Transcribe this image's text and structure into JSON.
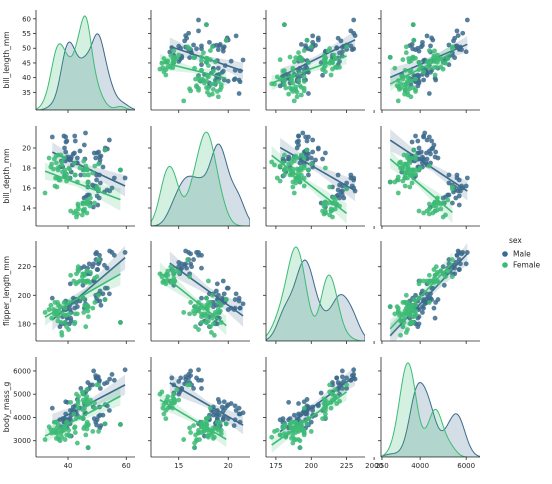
{
  "chart_data": {
    "type": "scatter",
    "kind": "pairplot",
    "variables": [
      "bill_length_mm",
      "bill_depth_mm",
      "flipper_length_mm",
      "body_mass_g"
    ],
    "ranges": {
      "bill_length_mm": [
        29,
        63
      ],
      "bill_depth_mm": [
        12.2,
        22.2
      ],
      "flipper_length_mm": [
        168,
        238
      ],
      "body_mass_g": [
        2300,
        6600
      ]
    },
    "y_ticks": {
      "bill_length_mm": [
        35,
        40,
        45,
        50,
        55,
        60
      ],
      "bill_depth_mm": [
        14,
        16,
        18,
        20
      ],
      "flipper_length_mm": [
        180,
        200,
        220
      ],
      "body_mass_g": [
        3000,
        4000,
        5000,
        6000
      ]
    },
    "x_ticks": {
      "bill_length_mm": [
        40,
        60
      ],
      "bill_depth_mm": [
        15,
        20
      ],
      "flipper_length_mm": [
        175,
        200,
        225,
        250
      ],
      "body_mass_g": [
        2000,
        4000,
        6000
      ]
    },
    "diag_kind": "kde",
    "offdiag_kind": "reg",
    "hue": "sex",
    "legend": {
      "title": "sex",
      "placement": "right",
      "entries": [
        "Male",
        "Female"
      ]
    },
    "grid": false,
    "series": [
      {
        "name": "Male",
        "color": "#3b6a8c",
        "points": [
          [
            39.1,
            18.7,
            181,
            3750
          ],
          [
            39.3,
            20.6,
            190,
            3650
          ],
          [
            39.2,
            19.6,
            195,
            4675
          ],
          [
            38.6,
            21.2,
            191,
            3800
          ],
          [
            34.6,
            21.1,
            198,
            4400
          ],
          [
            42.5,
            20.7,
            197,
            4500
          ],
          [
            46.0,
            21.5,
            194,
            4200
          ],
          [
            37.7,
            18.7,
            180,
            3600
          ],
          [
            38.2,
            18.1,
            185,
            3950
          ],
          [
            38.8,
            17.2,
            180,
            3800
          ],
          [
            40.6,
            18.8,
            193,
            3800
          ],
          [
            40.5,
            18.9,
            180,
            3950
          ],
          [
            37.2,
            18.1,
            178,
            3900
          ],
          [
            40.9,
            18.9,
            184,
            3900
          ],
          [
            39.2,
            21.1,
            196,
            4150
          ],
          [
            38.8,
            20.0,
            190,
            3950
          ],
          [
            41.1,
            19.1,
            188,
            4100
          ],
          [
            41.8,
            19.4,
            198,
            4450
          ],
          [
            39.8,
            19.1,
            184,
            4650
          ],
          [
            44.1,
            19.7,
            196,
            4400
          ],
          [
            42.3,
            21.2,
            191,
            4150
          ],
          [
            39.6,
            20.7,
            191,
            3900
          ],
          [
            40.7,
            17.0,
            190,
            3725
          ],
          [
            41.5,
            18.3,
            195,
            4300
          ],
          [
            43.2,
            19.0,
            197,
            4775
          ],
          [
            45.6,
            20.3,
            191,
            4600
          ],
          [
            42.2,
            19.5,
            197,
            4275
          ],
          [
            40.8,
            18.9,
            208,
            4300
          ],
          [
            45.8,
            18.9,
            197,
            4150
          ],
          [
            42.8,
            18.5,
            195,
            4250
          ],
          [
            50.0,
            19.5,
            196,
            3900
          ],
          [
            51.3,
            19.2,
            193,
            3650
          ],
          [
            52.7,
            19.8,
            197,
            3725
          ],
          [
            50.5,
            19.6,
            201,
            4050
          ],
          [
            49.0,
            19.5,
            210,
            3950
          ],
          [
            50.8,
            18.5,
            201,
            4450
          ],
          [
            52.0,
            18.1,
            201,
            4100
          ],
          [
            53.5,
            19.9,
            205,
            4500
          ],
          [
            49.5,
            19.0,
            200,
            3800
          ],
          [
            50.9,
            19.1,
            196,
            3550
          ],
          [
            52.8,
            20.0,
            205,
            4550
          ],
          [
            54.2,
            20.8,
            201,
            4300
          ],
          [
            51.0,
            18.8,
            203,
            4100
          ],
          [
            49.8,
            17.3,
            198,
            3675
          ],
          [
            48.7,
            14.1,
            210,
            4450
          ],
          [
            50.0,
            15.2,
            218,
            5700
          ],
          [
            47.6,
            14.5,
            215,
            5400
          ],
          [
            46.7,
            15.3,
            219,
            5200
          ],
          [
            49.6,
            16.0,
            225,
            5700
          ],
          [
            46.1,
            15.1,
            215,
            5100
          ],
          [
            48.4,
            16.3,
            220,
            5400
          ],
          [
            50.2,
            14.3,
            218,
            5700
          ],
          [
            54.3,
            15.7,
            231,
            5650
          ],
          [
            49.8,
            16.8,
            230,
            5700
          ],
          [
            49.5,
            16.2,
            229,
            5800
          ],
          [
            50.7,
            15.0,
            223,
            5550
          ],
          [
            52.5,
            15.6,
            221,
            5450
          ],
          [
            50.8,
            17.3,
            228,
            5600
          ],
          [
            55.9,
            17.0,
            228,
            5600
          ],
          [
            59.6,
            17.0,
            230,
            6050
          ],
          [
            51.1,
            16.5,
            225,
            5250
          ],
          [
            55.1,
            16.0,
            230,
            5850
          ],
          [
            48.8,
            16.2,
            222,
            6000
          ],
          [
            50.4,
            15.7,
            222,
            5750
          ],
          [
            46.9,
            16.6,
            192,
            2700
          ],
          [
            45.2,
            17.8,
            198,
            3950
          ],
          [
            43.2,
            18.5,
            192,
            4100
          ],
          [
            45.5,
            15.0,
            220,
            5000
          ],
          [
            44.4,
            17.3,
            219,
            5250
          ],
          [
            46.8,
            16.1,
            215,
            5500
          ],
          [
            47.3,
            15.3,
            222,
            5250
          ],
          [
            58.0,
            17.8,
            181,
            3700
          ],
          [
            41.1,
            17.6,
            182,
            3200
          ],
          [
            39.7,
            18.9,
            184,
            3550
          ],
          [
            45.1,
            14.5,
            207,
            5050
          ],
          [
            53.4,
            15.8,
            219,
            5500
          ]
        ]
      },
      {
        "name": "Female",
        "color": "#3cbb75",
        "points": [
          [
            39.5,
            17.4,
            186,
            3800
          ],
          [
            40.3,
            18.0,
            195,
            3250
          ],
          [
            36.7,
            19.3,
            193,
            3450
          ],
          [
            38.9,
            17.8,
            181,
            3625
          ],
          [
            36.6,
            17.8,
            185,
            3700
          ],
          [
            38.7,
            19.0,
            195,
            3450
          ],
          [
            34.4,
            18.4,
            184,
            3325
          ],
          [
            37.8,
            18.3,
            174,
            3400
          ],
          [
            35.9,
            19.2,
            189,
            3800
          ],
          [
            35.3,
            18.9,
            187,
            3800
          ],
          [
            40.5,
            17.9,
            187,
            3200
          ],
          [
            37.9,
            18.6,
            172,
            3150
          ],
          [
            39.5,
            16.7,
            178,
            3250
          ],
          [
            36.4,
            17.0,
            195,
            3325
          ],
          [
            42.2,
            18.5,
            180,
            3550
          ],
          [
            37.6,
            19.3,
            181,
            3300
          ],
          [
            36.5,
            18.0,
            182,
            3150
          ],
          [
            36.0,
            18.5,
            186,
            3100
          ],
          [
            36.2,
            16.1,
            187,
            3550
          ],
          [
            34.1,
            18.1,
            193,
            3475
          ],
          [
            35.7,
            17.0,
            189,
            3350
          ],
          [
            33.5,
            19.0,
            190,
            3600
          ],
          [
            36.9,
            16.8,
            189,
            3050
          ],
          [
            39.0,
            17.5,
            186,
            3550
          ],
          [
            32.1,
            15.5,
            188,
            3050
          ],
          [
            35.0,
            17.9,
            190,
            3450
          ],
          [
            37.3,
            16.8,
            192,
            3000
          ],
          [
            46.5,
            17.9,
            192,
            3500
          ],
          [
            45.4,
            18.7,
            188,
            3525
          ],
          [
            45.2,
            17.8,
            198,
            3950
          ],
          [
            46.1,
            18.2,
            178,
            3250
          ],
          [
            46.4,
            17.8,
            191,
            3700
          ],
          [
            42.4,
            17.3,
            181,
            3600
          ],
          [
            48.5,
            17.5,
            191,
            3400
          ],
          [
            43.2,
            16.6,
            187,
            2900
          ],
          [
            45.7,
            17.3,
            193,
            3600
          ],
          [
            46.6,
            17.8,
            193,
            3800
          ],
          [
            47.0,
            17.3,
            185,
            3700
          ],
          [
            52.7,
            19.8,
            197,
            3725
          ],
          [
            42.5,
            17.3,
            187,
            3350
          ],
          [
            46.9,
            16.6,
            192,
            2700
          ],
          [
            50.5,
            18.4,
            200,
            3400
          ],
          [
            49.2,
            18.2,
            195,
            4400
          ],
          [
            46.8,
            16.5,
            189,
            3650
          ],
          [
            46.2,
            14.5,
            209,
            4800
          ],
          [
            45.1,
            14.5,
            215,
            5000
          ],
          [
            46.5,
            13.5,
            210,
            4550
          ],
          [
            42.9,
            13.1,
            215,
            5000
          ],
          [
            42.0,
            13.5,
            210,
            4150
          ],
          [
            45.3,
            13.7,
            210,
            4300
          ],
          [
            43.6,
            13.9,
            217,
            4900
          ],
          [
            40.9,
            13.7,
            214,
            4650
          ],
          [
            46.5,
            14.8,
            217,
            5200
          ],
          [
            45.2,
            13.8,
            215,
            4750
          ],
          [
            44.9,
            13.3,
            213,
            5100
          ],
          [
            43.3,
            13.4,
            209,
            4400
          ],
          [
            47.5,
            14.2,
            209,
            4600
          ],
          [
            46.4,
            14.6,
            210,
            4750
          ],
          [
            45.5,
            13.7,
            214,
            4650
          ],
          [
            43.5,
            14.2,
            220,
            4700
          ],
          [
            47.7,
            15.0,
            216,
            4750
          ],
          [
            46.9,
            14.6,
            210,
            4650
          ],
          [
            42.7,
            13.7,
            208,
            3950
          ],
          [
            45.7,
            13.9,
            214,
            4400
          ],
          [
            49.1,
            14.5,
            212,
            4625
          ],
          [
            50.5,
            15.9,
            225,
            5400
          ],
          [
            43.4,
            14.4,
            218,
            4600
          ],
          [
            45.1,
            14.4,
            210,
            4400
          ],
          [
            46.5,
            14.4,
            217,
            4900
          ],
          [
            49.9,
            16.1,
            213,
            5400
          ],
          [
            38.1,
            17.6,
            187,
            3425
          ],
          [
            39.0,
            17.1,
            191,
            3050
          ],
          [
            40.2,
            17.0,
            176,
            3450
          ],
          [
            58.0,
            17.8,
            181,
            3700
          ],
          [
            35.5,
            16.2,
            195,
            3350
          ],
          [
            44.1,
            18.0,
            210,
            4000
          ]
        ]
      }
    ]
  }
}
